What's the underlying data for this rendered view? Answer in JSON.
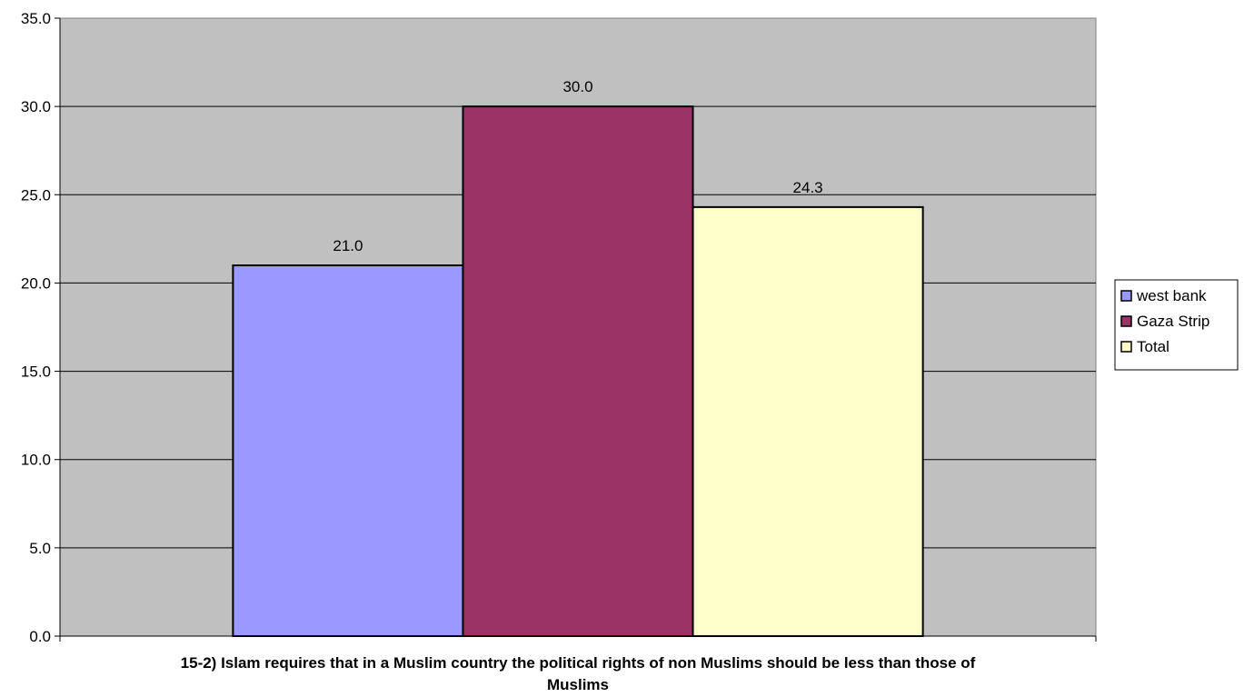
{
  "chart_data": {
    "type": "bar",
    "title": "",
    "xlabel": "15-2) Islam requires that in a Muslim country the political rights of non Muslims should be less than those of Muslims",
    "ylabel": "",
    "ylim": [
      0,
      35
    ],
    "yticks": [
      0,
      5,
      10,
      15,
      20,
      25,
      30,
      35
    ],
    "ytick_labels": [
      "0.0",
      "5.0",
      "10.0",
      "15.0",
      "20.0",
      "25.0",
      "30.0",
      "35.0"
    ],
    "grid": true,
    "legend_position": "right",
    "plot_background": "#c0c0c0",
    "series": [
      {
        "name": "west bank",
        "values": [
          21.0
        ],
        "label": "21.0",
        "color": "#9999ff"
      },
      {
        "name": "Gaza Strip",
        "values": [
          30.0
        ],
        "label": "30.0",
        "color": "#993366"
      },
      {
        "name": "Total",
        "values": [
          24.3
        ],
        "label": "24.3",
        "color": "#ffffcc"
      }
    ]
  }
}
